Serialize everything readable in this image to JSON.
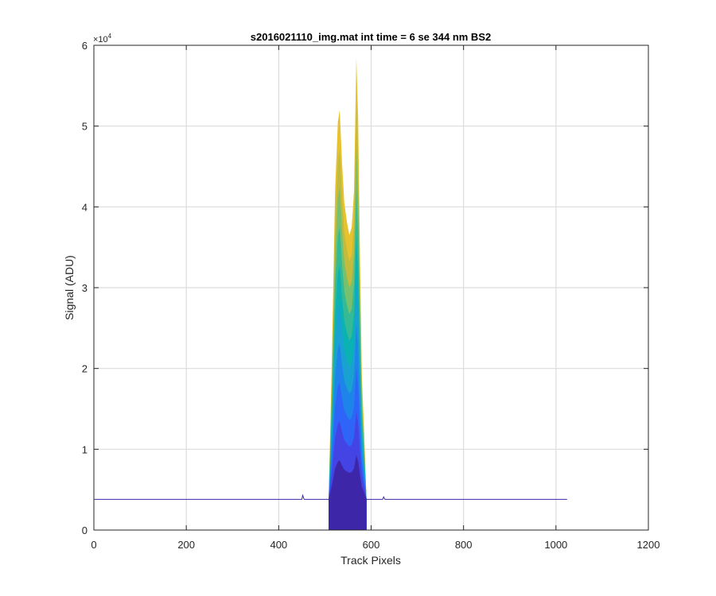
{
  "chart_data": {
    "type": "area",
    "title": "s2016021110_img.mat int time = 6 se  344 nm BS2",
    "xlabel": "Track Pixels",
    "ylabel": "Signal (ADU)",
    "y_exponent_label": "×10",
    "y_exponent_power": "4",
    "xlim": [
      0,
      1200
    ],
    "ylim": [
      0,
      6
    ],
    "xticks": [
      0,
      200,
      400,
      600,
      800,
      1000,
      1200
    ],
    "yticks": [
      0,
      1,
      2,
      3,
      4,
      5,
      6
    ],
    "xtick_labels": [
      "0",
      "200",
      "400",
      "600",
      "800",
      "1000",
      "1200"
    ],
    "ytick_labels": [
      "0",
      "1",
      "2",
      "3",
      "4",
      "5",
      "6"
    ],
    "grid": true,
    "baseline": {
      "x": [
        1,
        100,
        200,
        300,
        400,
        450,
        452,
        455,
        505,
        595,
        625,
        627,
        630,
        700,
        800,
        900,
        1024
      ],
      "y": [
        0.38,
        0.38,
        0.38,
        0.38,
        0.38,
        0.38,
        0.43,
        0.38,
        0.38,
        0.38,
        0.38,
        0.41,
        0.38,
        0.38,
        0.38,
        0.38,
        0.38
      ]
    },
    "peak": {
      "x": [
        508,
        515,
        522,
        528,
        532,
        537,
        542,
        548,
        553,
        558,
        563,
        568,
        572,
        576,
        580,
        585,
        590
      ],
      "y": [
        0.38,
        2.1,
        4.2,
        5.05,
        5.2,
        4.55,
        4.05,
        3.8,
        3.65,
        3.75,
        4.2,
        5.85,
        5.1,
        3.3,
        1.9,
        1.2,
        0.38
      ]
    },
    "layer_fractions": [
      1.0,
      0.9,
      0.8,
      0.7,
      0.6,
      0.5,
      0.4,
      0.3,
      0.2,
      0.1
    ],
    "colormap": [
      "#3e26a8",
      "#4443e3",
      "#2e65f8",
      "#1f84ea",
      "#19a1d2",
      "#0bb2b4",
      "#34bb95",
      "#76c06e",
      "#c3bb3e",
      "#e7c22f"
    ],
    "baseline_color": "#3e26a8"
  }
}
